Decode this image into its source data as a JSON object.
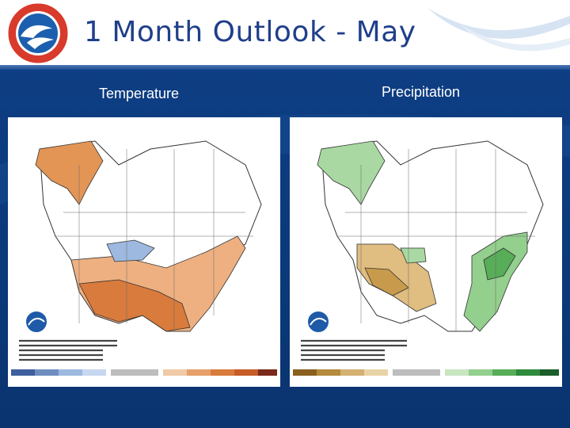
{
  "header": {
    "title": "1 Month Outlook - May",
    "logo_icon": "nws-logo-icon"
  },
  "panels": [
    {
      "label": "Temperature",
      "map_icon": "temperature-outlook-map-icon",
      "palette": [
        "#6e8ec0",
        "#9db9e0",
        "#c7d7ef",
        "#f0c9a6",
        "#e6a06b",
        "#d97b3c",
        "#c65c28"
      ]
    },
    {
      "label": "Precipitation",
      "map_icon": "precipitation-outlook-map-icon",
      "palette": [
        "#b48a3c",
        "#d4b073",
        "#e8d3a6",
        "#c8e6c0",
        "#93cf8d",
        "#58ad58",
        "#2e8a3c"
      ]
    }
  ],
  "colors": {
    "accent": "#1f3f8a",
    "background": "#0b3a7c"
  }
}
